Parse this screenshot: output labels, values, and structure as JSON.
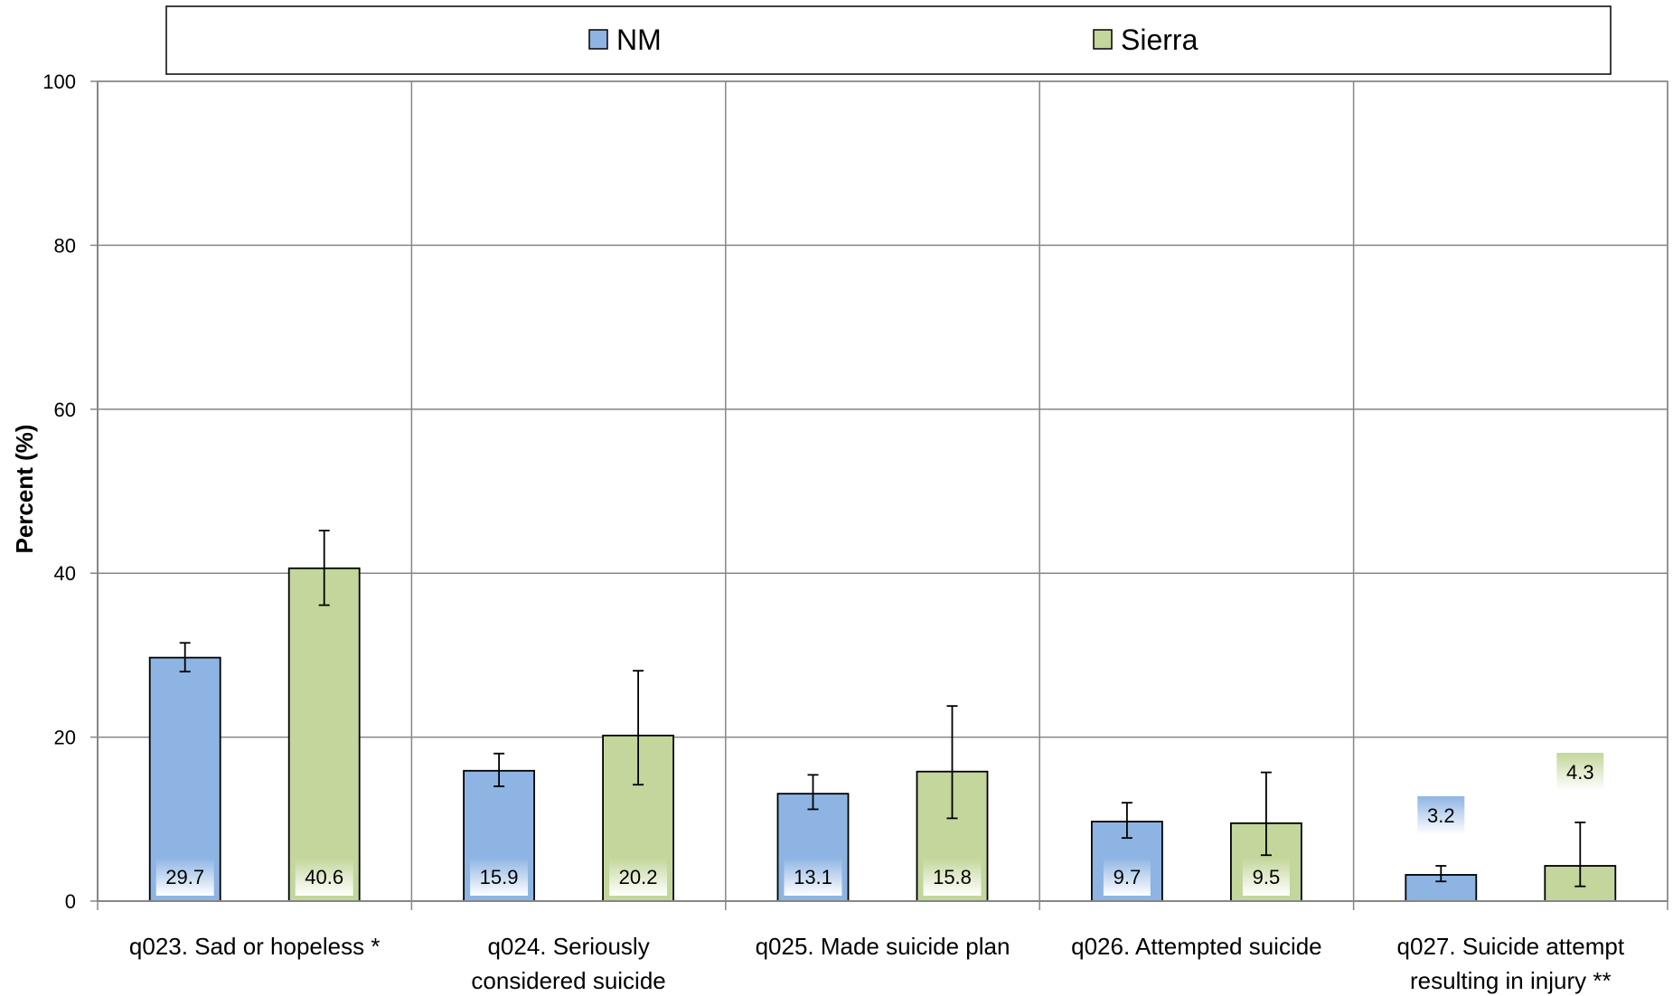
{
  "chart_data": {
    "type": "bar",
    "categories": [
      [
        "q023. Sad or hopeless *"
      ],
      [
        "q024. Seriously",
        "considered suicide"
      ],
      [
        "q025. Made suicide plan"
      ],
      [
        "q026. Attempted suicide"
      ],
      [
        "q027. Suicide attempt",
        "resulting in injury **"
      ]
    ],
    "series": [
      {
        "name": "NM",
        "color": "#8eb4e3",
        "values": [
          29.7,
          15.9,
          13.1,
          9.7,
          3.2
        ],
        "labels": [
          "29.7",
          "15.9",
          "13.1",
          "9.7",
          "3.2"
        ],
        "err_low": [
          28.0,
          14.0,
          11.2,
          7.7,
          2.4
        ],
        "err_high": [
          31.5,
          18.0,
          15.4,
          12.0,
          4.3
        ]
      },
      {
        "name": "Sierra",
        "color": "#c3d69b",
        "values": [
          40.6,
          20.2,
          15.8,
          9.5,
          4.3
        ],
        "labels": [
          "40.6",
          "20.2",
          "15.8",
          "9.5",
          "4.3"
        ],
        "err_low": [
          36.1,
          14.2,
          10.1,
          5.6,
          1.8
        ],
        "err_high": [
          45.2,
          28.1,
          23.8,
          15.7,
          9.6
        ]
      }
    ],
    "ylabel": "Percent (%)",
    "xlabel": "",
    "ylim": [
      0,
      100
    ],
    "yticks": [
      "0",
      "20",
      "40",
      "60",
      "80",
      "100"
    ],
    "grid": true,
    "legend_position": "top"
  }
}
